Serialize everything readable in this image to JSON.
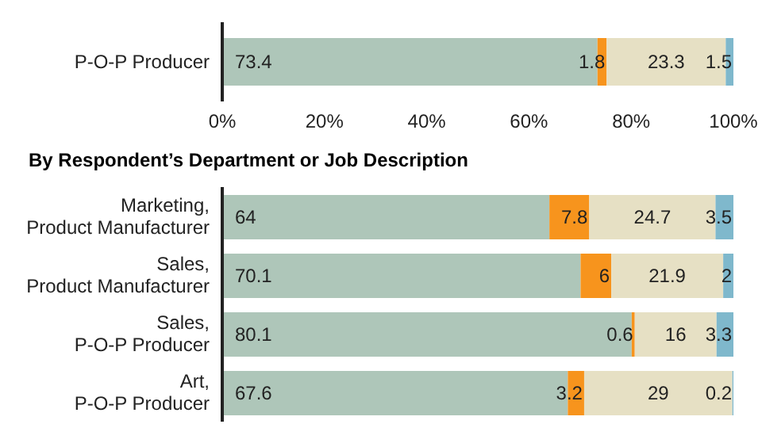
{
  "chart_data": [
    {
      "type": "bar",
      "orientation": "horizontal",
      "stacked": true,
      "categories": [
        "P-O-P Producer"
      ],
      "series": [
        {
          "color": "#aec6b9",
          "values": [
            73.4
          ]
        },
        {
          "color": "#f7941d",
          "values": [
            1.8
          ]
        },
        {
          "color": "#e6e0c4",
          "values": [
            23.3
          ]
        },
        {
          "color": "#7fb8cc",
          "values": [
            1.5
          ]
        }
      ],
      "xlim": [
        0,
        100
      ],
      "xticks": [
        {
          "value": 0,
          "label": "0%"
        },
        {
          "value": 20,
          "label": "20%"
        },
        {
          "value": 40,
          "label": "40%"
        },
        {
          "value": 60,
          "label": "60%"
        },
        {
          "value": 80,
          "label": "80%"
        },
        {
          "value": 100,
          "label": "100%"
        }
      ],
      "data_labels": true,
      "grid": false,
      "legend": false
    },
    {
      "type": "bar",
      "orientation": "horizontal",
      "stacked": true,
      "title": "By Respondent’s Department or Job Description",
      "categories": [
        "Marketing, Product Manufacturer",
        "Sales, Product Manufacturer",
        "Sales, P-O-P Producer",
        "Art, P-O-P Producer"
      ],
      "series": [
        {
          "color": "#aec6b9",
          "values": [
            64,
            70.1,
            80.1,
            67.6
          ]
        },
        {
          "color": "#f7941d",
          "values": [
            7.8,
            6,
            0.6,
            3.2
          ]
        },
        {
          "color": "#e6e0c4",
          "values": [
            24.7,
            21.9,
            16,
            29
          ]
        },
        {
          "color": "#7fb8cc",
          "values": [
            3.5,
            2,
            3.3,
            0.2
          ]
        }
      ],
      "xlim": [
        0,
        100
      ],
      "tick_labels": "y",
      "data_labels": true,
      "grid": false,
      "legend": false
    }
  ]
}
